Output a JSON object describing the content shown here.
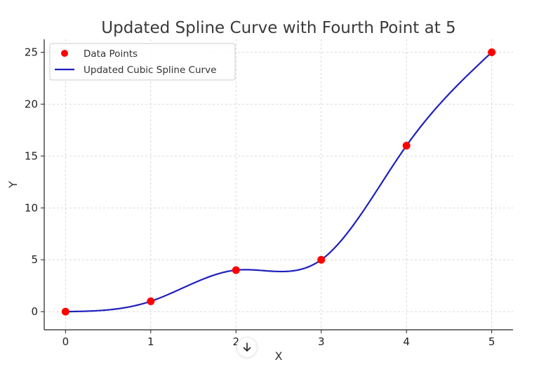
{
  "chart_data": {
    "type": "line",
    "title": "Updated Spline Curve with Fourth Point at 5",
    "xlabel": "X",
    "ylabel": "Y",
    "xlim": [
      -0.25,
      5.25
    ],
    "ylim": [
      -1.75,
      26.25
    ],
    "xticks": [
      0,
      1,
      2,
      3,
      4,
      5
    ],
    "yticks": [
      0,
      5,
      10,
      15,
      20,
      25
    ],
    "grid": true,
    "legend_position": "top-left",
    "series": [
      {
        "name": "Data Points",
        "kind": "scatter",
        "color": "#ff0000",
        "x": [
          0,
          1,
          2,
          3,
          4,
          5
        ],
        "y": [
          0,
          1,
          4,
          5,
          16,
          25
        ]
      },
      {
        "name": "Updated Cubic Spline Curve",
        "kind": "line",
        "color": "#1f1fbf",
        "x": [
          0,
          1,
          2,
          3,
          4,
          5
        ],
        "y": [
          0,
          1,
          4,
          5,
          16,
          25
        ]
      }
    ]
  },
  "ui": {
    "scroll_down_icon": "arrow-down-icon"
  }
}
